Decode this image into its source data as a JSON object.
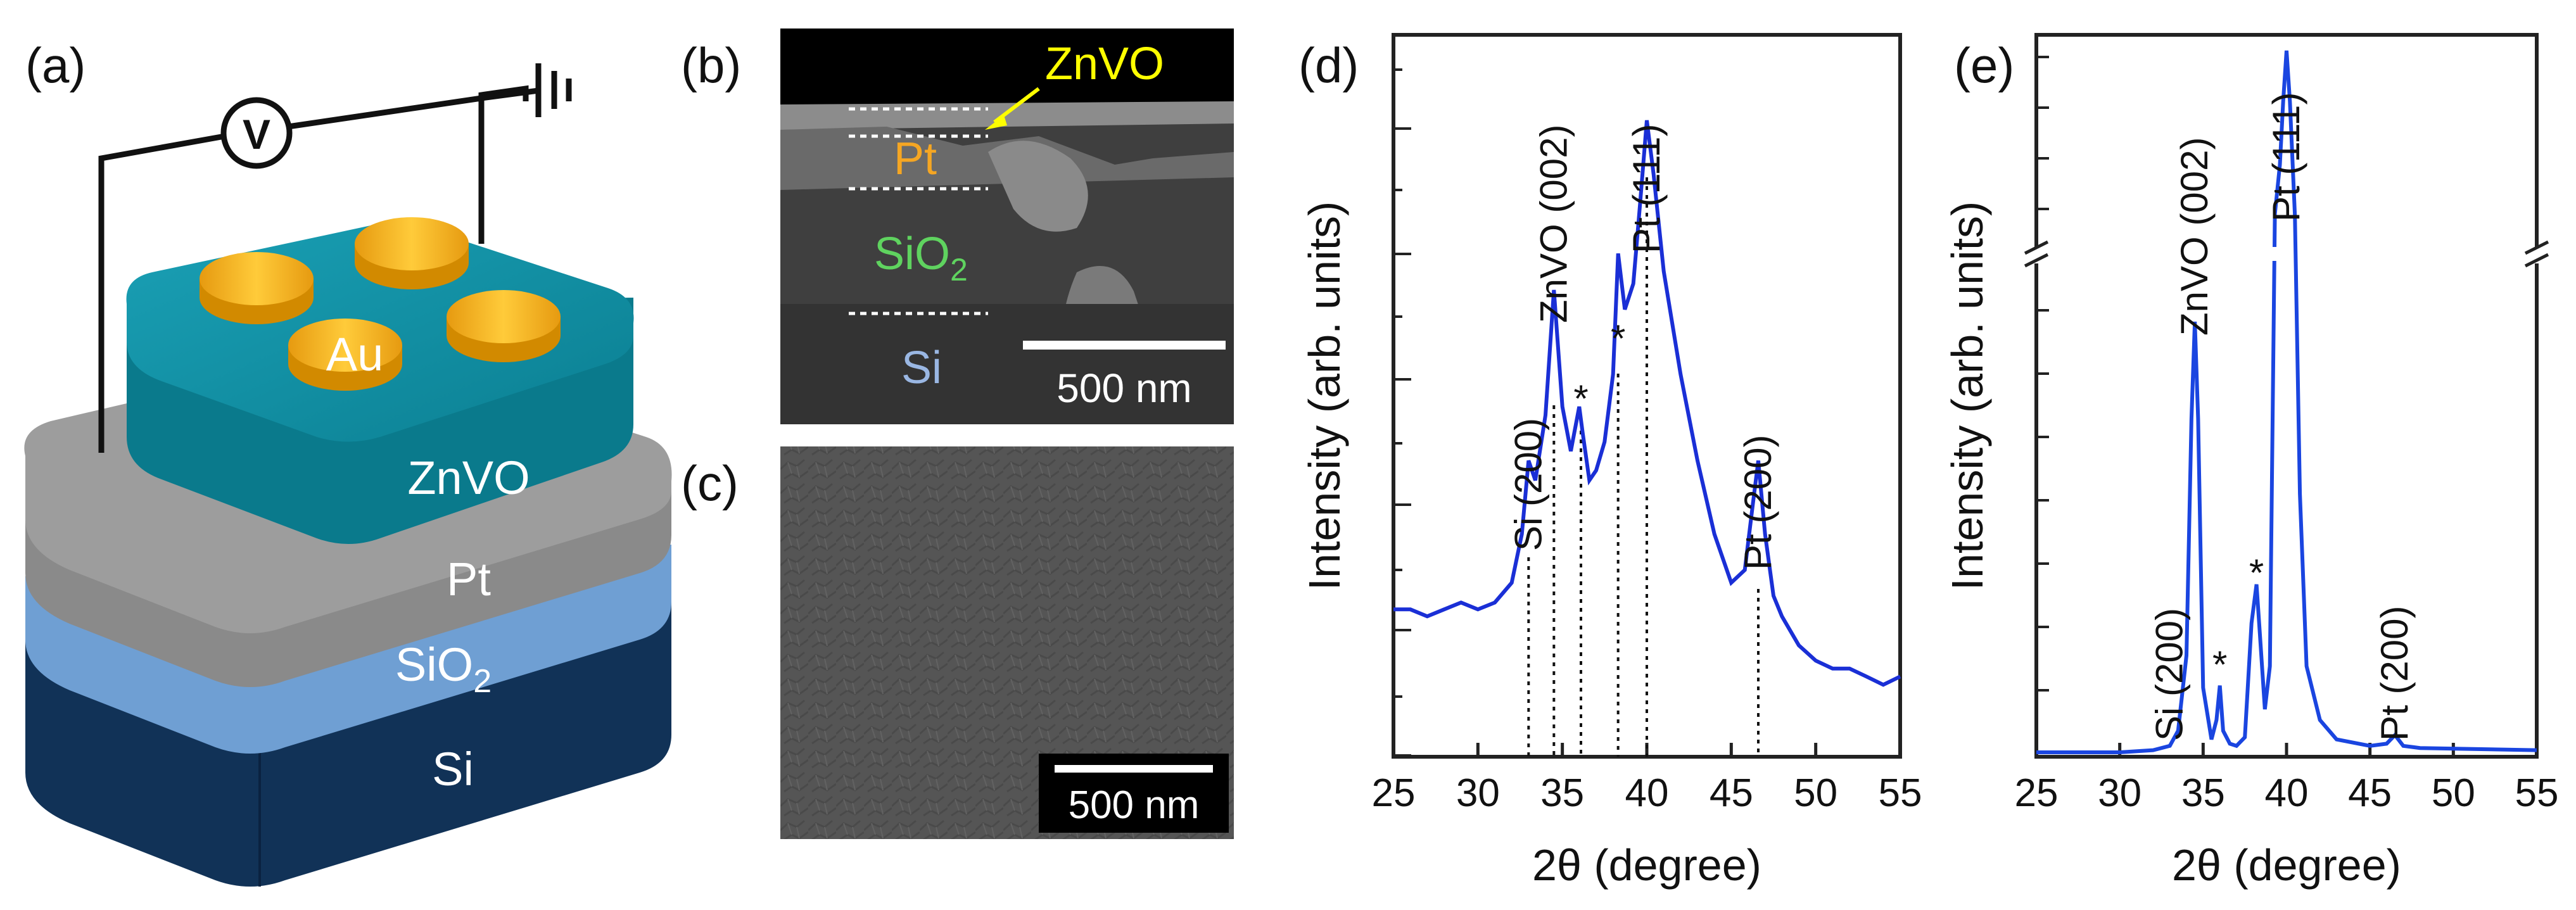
{
  "panels": {
    "a": {
      "label": "(a)",
      "voltmeter": "V",
      "layers": {
        "au": "Au",
        "znvo": "ZnVO",
        "pt": "Pt",
        "sio2": "SiO",
        "sio2_sub": "2",
        "si": "Si"
      },
      "colors": {
        "au": "#f5b622",
        "znvo": "#0f8da0",
        "pt": "#8a8a8a",
        "sio2": "#6f9fd3",
        "si": "#113257"
      }
    },
    "b": {
      "label": "(b)",
      "znvo": "ZnVO",
      "pt": "Pt",
      "sio2": "SiO",
      "sio2_sub": "2",
      "si": "Si",
      "scale_bar": "500 nm",
      "colors": {
        "znvo": "#ffff00",
        "pt": "#f5a623",
        "sio2": "#5fd35f",
        "si": "#9ab7e3"
      }
    },
    "c": {
      "label": "(c)",
      "scale_bar": "500 nm"
    }
  },
  "chart_data": [
    {
      "panel": "(d)",
      "type": "line",
      "scale": "log",
      "xlabel": "2θ (degree)",
      "ylabel": "Intensity (arb. units)",
      "xlim": [
        25,
        55
      ],
      "xticks": [
        25,
        30,
        35,
        40,
        45,
        50,
        55
      ],
      "color": "#1a2fd6",
      "x": [
        25,
        26,
        27,
        28,
        29,
        30,
        31,
        32,
        32.6,
        33.0,
        33.4,
        34.0,
        34.5,
        35.0,
        35.5,
        36.0,
        36.2,
        36.6,
        37.0,
        37.5,
        38.0,
        38.3,
        38.7,
        39.2,
        39.6,
        40.0,
        40.4,
        41.0,
        42.0,
        43.0,
        44.0,
        45.0,
        45.8,
        46.3,
        46.6,
        47.0,
        47.5,
        48.0,
        49.0,
        50.0,
        51.0,
        52.0,
        53.0,
        54.0,
        55.0
      ],
      "y": [
        3.0,
        3.0,
        2.95,
        3.0,
        3.05,
        3.0,
        3.05,
        3.2,
        3.6,
        4.3,
        4.1,
        4.8,
        6.5,
        4.9,
        4.4,
        4.9,
        4.6,
        4.1,
        4.2,
        4.5,
        5.3,
        7.1,
        6.2,
        6.6,
        8.0,
        9.8,
        8.6,
        6.8,
        5.3,
        4.3,
        3.6,
        3.2,
        3.3,
        3.9,
        4.3,
        3.6,
        3.1,
        2.95,
        2.75,
        2.65,
        2.6,
        2.6,
        2.55,
        2.5,
        2.55
      ],
      "peaks": [
        {
          "label": "Si (200)",
          "x": 33.0
        },
        {
          "label": "ZnVO (002)",
          "x": 34.5
        },
        {
          "label": "*",
          "x": 36.1
        },
        {
          "label": "*",
          "x": 38.3
        },
        {
          "label": "Pt (111)",
          "x": 40.0
        },
        {
          "label": "Pt (200)",
          "x": 46.6
        }
      ]
    },
    {
      "panel": "(e)",
      "type": "line",
      "scale": "linear (broken y-axis)",
      "xlabel": "2θ (degree)",
      "ylabel": "Intensity (arb. units)",
      "xlim": [
        25,
        55
      ],
      "xticks": [
        25,
        30,
        35,
        40,
        45,
        50,
        55
      ],
      "color": "#1a45e0",
      "x": [
        25,
        30,
        32,
        33.0,
        33.5,
        34.0,
        34.3,
        34.5,
        34.7,
        35.0,
        35.5,
        35.8,
        36.0,
        36.2,
        36.6,
        37.0,
        37.5,
        37.9,
        38.2,
        38.4,
        38.7,
        39.0,
        39.3,
        39.6,
        39.8,
        40.0,
        40.2,
        40.5,
        40.8,
        41.2,
        42.0,
        43.0,
        45.0,
        46.0,
        46.5,
        47.0,
        48.0,
        55.0
      ],
      "y": [
        0,
        0,
        0.01,
        0.03,
        0.1,
        0.45,
        1.55,
        2.0,
        1.55,
        0.3,
        0.06,
        0.15,
        0.31,
        0.1,
        0.04,
        0.03,
        0.07,
        0.6,
        0.78,
        0.55,
        0.2,
        0.4,
        2.5,
        5.5,
        8.0,
        10.0,
        8.0,
        3.5,
        1.2,
        0.4,
        0.15,
        0.06,
        0.03,
        0.04,
        0.08,
        0.03,
        0.02,
        0.01
      ],
      "peaks": [
        {
          "label": "Si (200)",
          "x": 33.0
        },
        {
          "label": "ZnVO (002)",
          "x": 34.5
        },
        {
          "label": "*",
          "x": 36.0
        },
        {
          "label": "*",
          "x": 38.2
        },
        {
          "label": "Pt (111)",
          "x": 40.0
        },
        {
          "label": "Pt (200)",
          "x": 46.5
        }
      ]
    }
  ]
}
